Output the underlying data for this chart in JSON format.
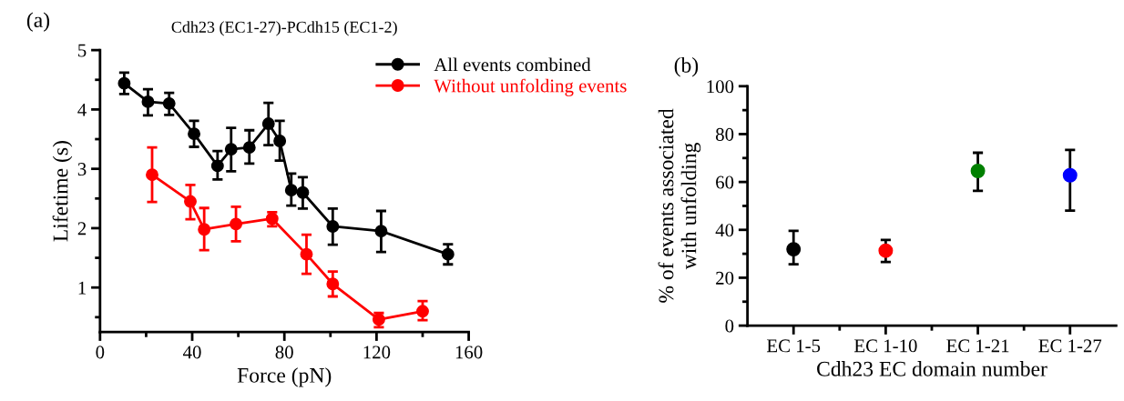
{
  "chart_data": [
    {
      "type": "line",
      "title": "Cdh23 (EC1-27)-PCdh15 (EC1-2)",
      "xlabel": "Force (pN)",
      "ylabel": "Lifetime (s)",
      "annotations": [
        "(a)"
      ],
      "xlim": [
        0,
        160
      ],
      "xticks": [
        0,
        {
          "value": 20,
          "label": null
        },
        40,
        {
          "value": 60,
          "label": null
        },
        80,
        {
          "value": 100,
          "label": null
        },
        120,
        {
          "value": 140,
          "label": null
        },
        160
      ],
      "ylim": [
        0.25,
        5
      ],
      "yticks": [
        {
          "value": 0.5,
          "label": null
        },
        1,
        {
          "value": 1.5,
          "label": null
        },
        2,
        {
          "value": 2.5,
          "label": null
        },
        3,
        {
          "value": 3.5,
          "label": null
        },
        4,
        {
          "value": 4.5,
          "label": null
        },
        5
      ],
      "marker": "circle",
      "legend": "top right",
      "grid": false,
      "series": [
        {
          "name": "All events combined",
          "color": "#000000",
          "x": [
            10.5,
            20.8,
            30,
            40.8,
            51,
            56.9,
            64.8,
            73.1,
            78,
            83,
            88,
            101,
            122,
            151
          ],
          "values": [
            4.44,
            4.13,
            4.1,
            3.59,
            3.05,
            3.33,
            3.36,
            3.76,
            3.47,
            2.64,
            2.6,
            2.03,
            1.95,
            1.56
          ],
          "errors": [
            [
              4.26,
              4.62
            ],
            [
              3.9,
              4.34
            ],
            [
              3.91,
              4.28
            ],
            [
              3.37,
              3.81
            ],
            [
              2.82,
              3.3
            ],
            [
              2.96,
              3.69
            ],
            [
              3.09,
              3.65
            ],
            [
              3.4,
              4.11
            ],
            [
              3.14,
              3.81
            ],
            [
              2.38,
              2.92
            ],
            [
              2.33,
              2.86
            ],
            [
              1.72,
              2.33
            ],
            [
              1.6,
              2.29
            ],
            [
              1.39,
              1.73
            ]
          ]
        },
        {
          "name": "Without unfolding events",
          "color": "#ff0000",
          "x": [
            22.6,
            39.2,
            45.2,
            59,
            74.7,
            89.6,
            101,
            121,
            140
          ],
          "values": [
            2.9,
            2.45,
            1.98,
            2.07,
            2.16,
            1.56,
            1.06,
            0.46,
            0.6
          ],
          "errors": [
            [
              2.44,
              3.36
            ],
            [
              2.15,
              2.73
            ],
            [
              1.63,
              2.34
            ],
            [
              1.78,
              2.36
            ],
            [
              2.03,
              2.27
            ],
            [
              1.23,
              1.89
            ],
            [
              0.85,
              1.27
            ],
            [
              0.33,
              0.57
            ],
            [
              0.45,
              0.77
            ]
          ]
        }
      ]
    },
    {
      "type": "scatter",
      "xlabel": "Cdh23 EC domain number",
      "ylabel": "% of events associated\nwith unfolding",
      "annotations": [
        "(b)"
      ],
      "categories": [
        "EC 1-5",
        "EC 1-10",
        "EC 1-21",
        "EC 1-27"
      ],
      "ylim": [
        0,
        100
      ],
      "yticks": [
        0,
        {
          "value": 10,
          "label": null
        },
        20,
        {
          "value": 30,
          "label": null
        },
        40,
        {
          "value": 50,
          "label": null
        },
        60,
        {
          "value": 70,
          "label": null
        },
        80,
        {
          "value": 90,
          "label": null
        },
        100
      ],
      "marker": "circle",
      "grid": false,
      "values": [
        31.9,
        31.3,
        64.6,
        62.8
      ],
      "colors": [
        "#000000",
        "#ff0000",
        "#008000",
        "#0000ff"
      ],
      "errors": [
        [
          25.6,
          39.6
        ],
        [
          26.6,
          35.8
        ],
        [
          56.3,
          72.2
        ],
        [
          48,
          73.4
        ]
      ]
    }
  ]
}
